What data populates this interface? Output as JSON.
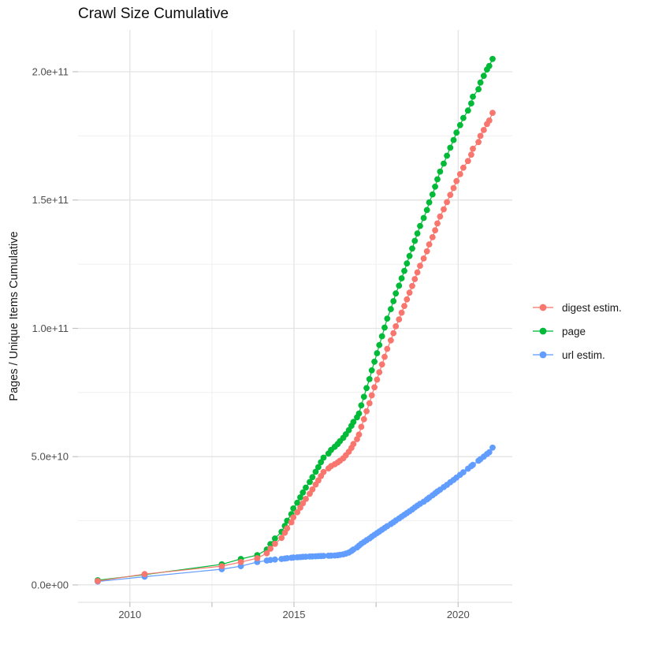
{
  "page": {
    "title": "Crawl Size Cumulative"
  },
  "chart_data": {
    "type": "line",
    "title": "Crawl Size Cumulative",
    "xlabel": "",
    "ylabel": "Pages / Unique Items Cumulative",
    "grid": true,
    "legend_position": "right",
    "x_axis": {
      "major_ticks": [
        2010,
        2015,
        2020
      ],
      "major_tick_labels": [
        "2010",
        "2015",
        "2020"
      ],
      "minor_ticks": [
        2012.5,
        2017.5
      ],
      "xlim": [
        2008.42,
        2021.65
      ]
    },
    "y_axis": {
      "major_ticks_billions": [
        0,
        50,
        100,
        150,
        200
      ],
      "major_tick_labels": [
        "0.0e+00",
        "5.0e+10",
        "1.0e+11",
        "1.5e+11",
        "2.0e+11"
      ],
      "minor_ticks_billions": [
        25,
        75,
        125,
        175
      ],
      "ylim_billions": [
        -6.8,
        216.3
      ]
    },
    "value_units": "pages, billions (1e9)",
    "x": [
      2009.02,
      2010.45,
      2012.8,
      2013.38,
      2013.88,
      2014.17,
      2014.28,
      2014.42,
      2014.62,
      2014.72,
      2014.79,
      2014.92,
      2014.98,
      2015.1,
      2015.19,
      2015.27,
      2015.36,
      2015.48,
      2015.56,
      2015.66,
      2015.74,
      2015.82,
      2015.9,
      2016.05,
      2016.13,
      2016.24,
      2016.33,
      2016.4,
      2016.5,
      2016.58,
      2016.67,
      2016.75,
      2016.81,
      2016.92,
      2016.98,
      2017.05,
      2017.13,
      2017.21,
      2017.3,
      2017.37,
      2017.45,
      2017.53,
      2017.6,
      2017.68,
      2017.76,
      2017.84,
      2017.95,
      2018.03,
      2018.1,
      2018.2,
      2018.28,
      2018.36,
      2018.44,
      2018.52,
      2018.6,
      2018.68,
      2018.76,
      2018.84,
      2018.95,
      2019.05,
      2019.12,
      2019.22,
      2019.3,
      2019.37,
      2019.45,
      2019.56,
      2019.66,
      2019.76,
      2019.86,
      2019.95,
      2020.06,
      2020.16,
      2020.3,
      2020.4,
      2020.45,
      2020.62,
      2020.68,
      2020.78,
      2020.88,
      2020.95,
      2021.05
    ],
    "draw_order": [
      1,
      2,
      0
    ],
    "series": [
      {
        "name": "digest estim.",
        "color": "#F8766D",
        "values_billions": [
          1.5,
          4.2,
          7.3,
          8.9,
          10.4,
          12.3,
          14.1,
          16.0,
          18.3,
          20.3,
          22.0,
          24.4,
          26.3,
          28.3,
          30.1,
          31.8,
          33.5,
          35.5,
          37.2,
          39.1,
          40.7,
          42.4,
          44.0,
          45.4,
          46.3,
          47.0,
          47.7,
          48.4,
          49.3,
          50.5,
          51.9,
          53.4,
          54.9,
          56.8,
          58.6,
          61.6,
          64.6,
          67.7,
          70.8,
          73.9,
          77.0,
          80.0,
          82.9,
          85.9,
          88.9,
          92.0,
          95.3,
          98.1,
          100.8,
          103.5,
          106.1,
          108.7,
          111.3,
          113.9,
          116.5,
          119.2,
          121.8,
          124.4,
          127.2,
          130.0,
          132.7,
          135.5,
          138.2,
          140.9,
          143.6,
          146.4,
          149.2,
          152.0,
          154.7,
          157.4,
          160.1,
          162.6,
          165.2,
          167.7,
          170.0,
          172.6,
          175.0,
          177.3,
          179.6,
          181.0,
          184.0
        ]
      },
      {
        "name": "page",
        "color": "#00BA38",
        "values_billions": [
          1.8,
          4.0,
          8.0,
          10.1,
          11.6,
          13.8,
          15.9,
          18.1,
          20.7,
          23.0,
          25.0,
          27.6,
          29.8,
          32.0,
          34.1,
          36.0,
          37.9,
          40.1,
          42.0,
          44.1,
          45.9,
          47.8,
          49.6,
          51.2,
          52.6,
          53.8,
          54.9,
          56.0,
          57.3,
          58.7,
          60.3,
          62.0,
          63.5,
          65.3,
          66.8,
          70.0,
          73.3,
          76.7,
          80.2,
          83.6,
          87.0,
          90.3,
          93.5,
          96.9,
          100.3,
          103.8,
          107.5,
          110.6,
          113.6,
          116.6,
          119.5,
          122.4,
          125.3,
          128.2,
          131.1,
          134.1,
          137.0,
          139.9,
          143.0,
          146.1,
          149.1,
          152.2,
          155.2,
          158.1,
          161.1,
          164.2,
          167.3,
          170.4,
          173.4,
          176.3,
          179.2,
          182.0,
          184.9,
          187.7,
          190.3,
          193.2,
          195.8,
          198.4,
          200.9,
          202.3,
          205.0
        ]
      },
      {
        "name": "url estim.",
        "color": "#619CFF",
        "values_billions": [
          1.3,
          3.2,
          6.1,
          7.3,
          8.9,
          9.5,
          9.7,
          9.9,
          10.1,
          10.25,
          10.4,
          10.55,
          10.65,
          10.75,
          10.85,
          10.92,
          11.0,
          11.05,
          11.1,
          11.15,
          11.2,
          11.25,
          11.3,
          11.35,
          11.4,
          11.45,
          11.55,
          11.7,
          11.9,
          12.2,
          12.6,
          13.2,
          13.8,
          14.6,
          15.3,
          16.0,
          16.7,
          17.4,
          18.1,
          18.8,
          19.5,
          20.2,
          20.8,
          21.5,
          22.2,
          22.9,
          23.7,
          24.4,
          25.1,
          25.9,
          26.6,
          27.3,
          28.0,
          28.7,
          29.4,
          30.2,
          30.9,
          31.6,
          32.4,
          33.3,
          34.0,
          34.9,
          35.7,
          36.4,
          37.1,
          38.1,
          39.0,
          40.0,
          40.9,
          41.8,
          42.9,
          43.9,
          45.3,
          46.3,
          46.8,
          48.4,
          49.0,
          50.0,
          51.0,
          51.7,
          53.5
        ]
      }
    ]
  }
}
